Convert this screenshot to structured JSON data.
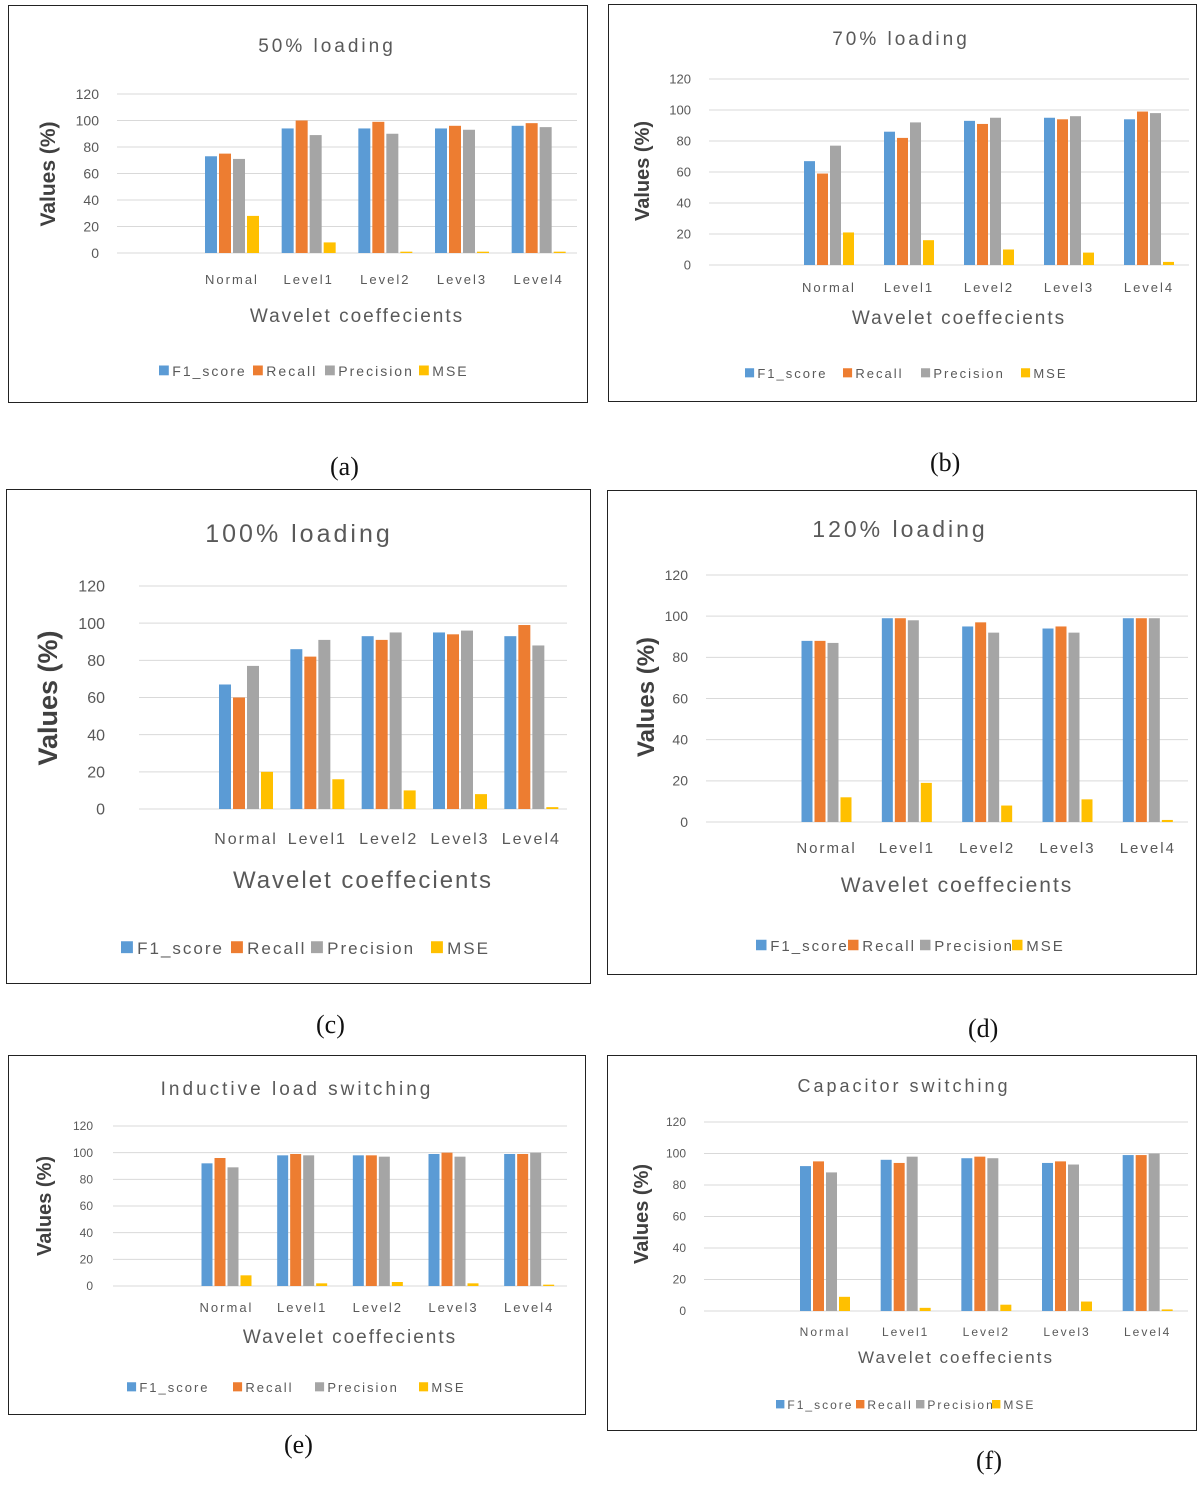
{
  "chart_data": [
    {
      "type": "bar",
      "panel": "(a)",
      "title": "50% loading",
      "xlabel": "Wavelet coeffecients",
      "ylabel": "Values (%)",
      "categories": [
        "Normal",
        "Level1",
        "Level2",
        "Level3",
        "Level4"
      ],
      "ylim": [
        0,
        120
      ],
      "yticks": [
        "120",
        "100",
        "80",
        "60",
        "40",
        "20",
        "0"
      ],
      "series": [
        {
          "name": "F1_score",
          "values": [
            73,
            94,
            94,
            94,
            96
          ]
        },
        {
          "name": "Recall",
          "values": [
            75,
            100,
            99,
            96,
            98
          ]
        },
        {
          "name": "Precision",
          "values": [
            71,
            89,
            90,
            93,
            95
          ]
        },
        {
          "name": "MSE",
          "values": [
            28,
            8,
            1,
            1,
            1
          ]
        }
      ]
    },
    {
      "type": "bar",
      "panel": "(b)",
      "title": "70% loading",
      "xlabel": "Wavelet coeffecients",
      "ylabel": "Values (%)",
      "categories": [
        "Normal",
        "Level1",
        "Level2",
        "Level3",
        "Level4"
      ],
      "ylim": [
        0,
        120
      ],
      "yticks": [
        "120",
        "100",
        "80",
        "60",
        "40",
        "20",
        "0"
      ],
      "series": [
        {
          "name": "F1_score",
          "values": [
            67,
            86,
            93,
            95,
            94
          ]
        },
        {
          "name": "Recall",
          "values": [
            59,
            82,
            91,
            94,
            99
          ]
        },
        {
          "name": "Precision",
          "values": [
            77,
            92,
            95,
            96,
            98
          ]
        },
        {
          "name": "MSE",
          "values": [
            21,
            16,
            10,
            8,
            2
          ]
        }
      ]
    },
    {
      "type": "bar",
      "panel": "(c)",
      "title": "100% loading",
      "xlabel": "Wavelet coeffecients",
      "ylabel": "Values (%)",
      "categories": [
        "Normal",
        "Level1",
        "Level2",
        "Level3",
        "Level4"
      ],
      "ylim": [
        0,
        120
      ],
      "yticks": [
        "120",
        "100",
        "80",
        "60",
        "40",
        "20",
        "0"
      ],
      "series": [
        {
          "name": "F1_score",
          "values": [
            67,
            86,
            93,
            95,
            93
          ]
        },
        {
          "name": "Recall",
          "values": [
            60,
            82,
            91,
            94,
            99
          ]
        },
        {
          "name": "Precision",
          "values": [
            77,
            91,
            95,
            96,
            88
          ]
        },
        {
          "name": "MSE",
          "values": [
            20,
            16,
            10,
            8,
            1
          ]
        }
      ]
    },
    {
      "type": "bar",
      "panel": "(d)",
      "title": "120% loading",
      "xlabel": "Wavelet coeffecients",
      "ylabel": "Values (%)",
      "categories": [
        "Normal",
        "Level1",
        "Level2",
        "Level3",
        "Level4"
      ],
      "ylim": [
        0,
        120
      ],
      "yticks": [
        "120",
        "100",
        "80",
        "60",
        "40",
        "20",
        "0"
      ],
      "series": [
        {
          "name": "F1_score",
          "values": [
            88,
            99,
            95,
            94,
            99
          ]
        },
        {
          "name": "Recall",
          "values": [
            88,
            99,
            97,
            95,
            99
          ]
        },
        {
          "name": "Precision",
          "values": [
            87,
            98,
            92,
            92,
            99
          ]
        },
        {
          "name": "MSE",
          "values": [
            12,
            19,
            8,
            11,
            1
          ]
        }
      ]
    },
    {
      "type": "bar",
      "panel": "(e)",
      "title": "Inductive load switching",
      "xlabel": "Wavelet coeffecients",
      "ylabel": "Values (%)",
      "categories": [
        "Normal",
        "Level1",
        "Level2",
        "Level3",
        "Level4"
      ],
      "ylim": [
        0,
        120
      ],
      "yticks": [
        "120",
        "100",
        "80",
        "60",
        "40",
        "20",
        "0"
      ],
      "series": [
        {
          "name": "F1_score",
          "values": [
            92,
            98,
            98,
            99,
            99
          ]
        },
        {
          "name": "Recall",
          "values": [
            96,
            99,
            98,
            100,
            99
          ]
        },
        {
          "name": "Precision",
          "values": [
            89,
            98,
            97,
            97,
            100
          ]
        },
        {
          "name": "MSE",
          "values": [
            8,
            2,
            3,
            2,
            1
          ]
        }
      ]
    },
    {
      "type": "bar",
      "panel": "(f)",
      "title": "Capacitor switching",
      "xlabel": "Wavelet coeffecients",
      "ylabel": "Values (%)",
      "categories": [
        "Normal",
        "Level1",
        "Level2",
        "Level3",
        "Level4"
      ],
      "ylim": [
        0,
        120
      ],
      "yticks": [
        "120",
        "100",
        "80",
        "60",
        "40",
        "20",
        "0"
      ],
      "series": [
        {
          "name": "F1_score",
          "values": [
            92,
            96,
            97,
            94,
            99
          ]
        },
        {
          "name": "Recall",
          "values": [
            95,
            94,
            98,
            95,
            99
          ]
        },
        {
          "name": "Precision",
          "values": [
            88,
            98,
            97,
            93,
            100
          ]
        },
        {
          "name": "MSE",
          "values": [
            9,
            2,
            4,
            6,
            1
          ]
        }
      ]
    }
  ],
  "colors": {
    "F1_score": "#5b9bd5",
    "Recall": "#ed7d31",
    "Precision": "#a5a5a5",
    "MSE": "#ffc000",
    "grid": "#d9d9d9"
  }
}
